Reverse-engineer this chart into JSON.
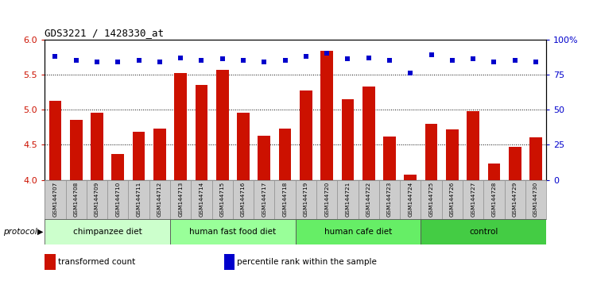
{
  "title": "GDS3221 / 1428330_at",
  "samples": [
    "GSM144707",
    "GSM144708",
    "GSM144709",
    "GSM144710",
    "GSM144711",
    "GSM144712",
    "GSM144713",
    "GSM144714",
    "GSM144715",
    "GSM144716",
    "GSM144717",
    "GSM144718",
    "GSM144719",
    "GSM144720",
    "GSM144721",
    "GSM144722",
    "GSM144723",
    "GSM144724",
    "GSM144725",
    "GSM144726",
    "GSM144727",
    "GSM144728",
    "GSM144729",
    "GSM144730"
  ],
  "bar_values": [
    5.12,
    4.85,
    4.95,
    4.37,
    4.68,
    4.73,
    5.52,
    5.35,
    5.57,
    4.95,
    4.63,
    4.73,
    5.27,
    5.84,
    5.15,
    5.33,
    4.62,
    4.07,
    4.8,
    4.72,
    4.98,
    4.23,
    4.47,
    4.6
  ],
  "dot_values": [
    88,
    85,
    84,
    84,
    85,
    84,
    87,
    85,
    86,
    85,
    84,
    85,
    88,
    90,
    86,
    87,
    85,
    76,
    89,
    85,
    86,
    84,
    85,
    84
  ],
  "groups": [
    {
      "label": "chimpanzee diet",
      "start": 0,
      "end": 5,
      "color": "#ccffcc"
    },
    {
      "label": "human fast food diet",
      "start": 6,
      "end": 11,
      "color": "#99ff99"
    },
    {
      "label": "human cafe diet",
      "start": 12,
      "end": 17,
      "color": "#66ee66"
    },
    {
      "label": "control",
      "start": 18,
      "end": 23,
      "color": "#44cc44"
    }
  ],
  "bar_color": "#cc1100",
  "dot_color": "#0000cc",
  "ylim_left": [
    4.0,
    6.0
  ],
  "ylim_right": [
    0,
    100
  ],
  "yticks_left": [
    4.0,
    4.5,
    5.0,
    5.5,
    6.0
  ],
  "yticks_right": [
    0,
    25,
    50,
    75,
    100
  ],
  "ytick_labels_right": [
    "0",
    "25",
    "50",
    "75",
    "100%"
  ],
  "legend_items": [
    {
      "color": "#cc1100",
      "label": "transformed count"
    },
    {
      "color": "#0000cc",
      "label": "percentile rank within the sample"
    }
  ],
  "bg_color": "#ffffff",
  "tick_area_color": "#cccccc",
  "protocol_label": "protocol"
}
